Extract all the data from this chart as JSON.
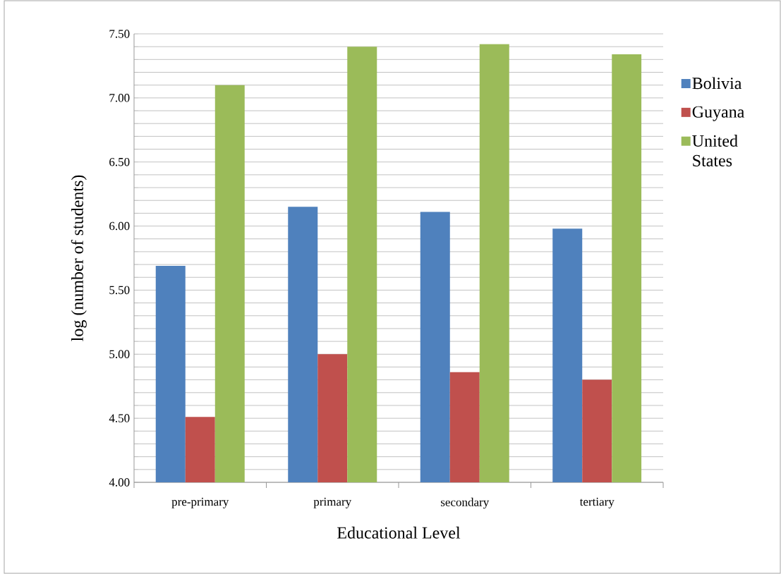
{
  "chart_data": {
    "type": "bar",
    "xlabel": "Educational Level",
    "ylabel": "log (number of students)",
    "categories": [
      "pre-primary",
      "primary",
      "secondary",
      "tertiary"
    ],
    "series": [
      {
        "name": "Bolivia",
        "color": "#4f81bd",
        "values": [
          5.69,
          6.15,
          6.11,
          5.98
        ]
      },
      {
        "name": "Guyana",
        "color": "#c0504d",
        "values": [
          4.51,
          5.0,
          4.86,
          4.8
        ]
      },
      {
        "name": "United States",
        "color": "#9bbb59",
        "values": [
          7.1,
          7.4,
          7.42,
          7.34
        ]
      }
    ],
    "ylim": [
      4.0,
      7.5
    ],
    "yticks": [
      {
        "value": 4.0,
        "label": "4.00"
      },
      {
        "value": 4.1,
        "label": null
      },
      {
        "value": 4.2,
        "label": null
      },
      {
        "value": 4.3,
        "label": null
      },
      {
        "value": 4.4,
        "label": null
      },
      {
        "value": 4.5,
        "label": "4.50"
      },
      {
        "value": 4.6,
        "label": null
      },
      {
        "value": 4.7,
        "label": null
      },
      {
        "value": 4.8,
        "label": null
      },
      {
        "value": 4.9,
        "label": null
      },
      {
        "value": 5.0,
        "label": "5.00"
      },
      {
        "value": 5.1,
        "label": null
      },
      {
        "value": 5.2,
        "label": null
      },
      {
        "value": 5.3,
        "label": null
      },
      {
        "value": 5.4,
        "label": null
      },
      {
        "value": 5.5,
        "label": "5.50"
      },
      {
        "value": 5.6,
        "label": null
      },
      {
        "value": 5.7,
        "label": null
      },
      {
        "value": 5.8,
        "label": null
      },
      {
        "value": 5.9,
        "label": null
      },
      {
        "value": 6.0,
        "label": "6.00"
      },
      {
        "value": 6.1,
        "label": null
      },
      {
        "value": 6.2,
        "label": null
      },
      {
        "value": 6.3,
        "label": null
      },
      {
        "value": 6.4,
        "label": null
      },
      {
        "value": 6.5,
        "label": "6.50"
      },
      {
        "value": 6.6,
        "label": null
      },
      {
        "value": 6.7,
        "label": null
      },
      {
        "value": 6.8,
        "label": null
      },
      {
        "value": 6.9,
        "label": null
      },
      {
        "value": 7.0,
        "label": "7.00"
      },
      {
        "value": 7.1,
        "label": null
      },
      {
        "value": 7.2,
        "label": null
      },
      {
        "value": 7.3,
        "label": null
      },
      {
        "value": 7.4,
        "label": null
      },
      {
        "value": 7.5,
        "label": "7.50"
      }
    ],
    "grid": "y",
    "legend": "right"
  }
}
